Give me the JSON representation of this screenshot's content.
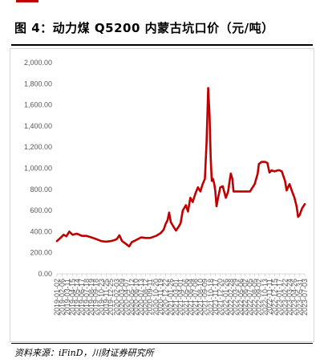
{
  "figure": {
    "title": "图 4：动力煤 Q5200 内蒙古坑口价（元/吨）",
    "source": "资料来源：iFinD，川财证券研究所"
  },
  "colors": {
    "line": "#c00000",
    "accent": "#c00000",
    "axis_text": "#595959",
    "gridline": "#d9d9d9"
  },
  "chart_data": {
    "type": "line",
    "title": "",
    "xlabel": "",
    "ylabel": "",
    "ylim": [
      0,
      2000
    ],
    "y_ticks": [
      "0.00",
      "200.00",
      "400.00",
      "600.00",
      "800.00",
      "1,000.00",
      "1,200.00",
      "1,400.00",
      "1,600.00",
      "1,800.00",
      "2,000.00"
    ],
    "x_ticks": [
      "2019-01-02",
      "2019-02-06",
      "2019-03-11",
      "2019-04-15",
      "2019-05-14",
      "2019-06-17",
      "2019-07-18",
      "2019-08-19",
      "2019-09-18",
      "2019-10-23",
      "2019-11-25",
      "2019-12-25",
      "2020-02-03",
      "2020-03-09",
      "2020-04-07",
      "2020-05-12",
      "2020-06-10",
      "2020-07-13",
      "2020-08-12",
      "2020-09-11",
      "2020-10-20",
      "2020-11-19",
      "2020-12-22",
      "2021-01-26",
      "2021-03-01",
      "2021-04-01",
      "2021-05-06",
      "2021-06-04",
      "2021-07-08",
      "2021-08-10",
      "2021-09-09",
      "2021-10-18",
      "2021-11-17",
      "2021-12-20",
      "2022-01-26",
      "2022-02-28",
      "2022-03-29",
      "2022-05-06",
      "2022-06-02",
      "2022-07-05",
      "2022-08-05",
      "2022-09-02",
      "2022-10-13",
      "2022-11-11",
      "2022-12-15",
      "2023-01-17",
      "2023-02-22",
      "2023-03-24",
      "2023-04-26",
      "2023-05-31",
      "2023-07-03"
    ],
    "grid": false,
    "legend": "none",
    "series": [
      {
        "x": [
          "2019-01-02",
          "2019-01-25",
          "2019-02-15",
          "2019-03-05",
          "2019-03-25",
          "2019-04-15",
          "2019-05-14",
          "2019-06-17",
          "2019-07-18",
          "2019-08-19",
          "2019-09-18",
          "2019-10-23",
          "2019-11-25",
          "2019-12-25",
          "2020-01-20",
          "2020-02-03",
          "2020-02-20",
          "2020-03-09",
          "2020-04-07",
          "2020-04-25",
          "2020-05-12",
          "2020-06-10",
          "2020-07-13",
          "2020-08-12",
          "2020-09-11",
          "2020-10-20",
          "2020-11-19",
          "2020-12-10",
          "2020-12-22",
          "2021-01-05",
          "2021-01-15",
          "2021-01-26",
          "2021-02-15",
          "2021-03-01",
          "2021-03-20",
          "2021-04-01",
          "2021-04-15",
          "2021-05-06",
          "2021-05-20",
          "2021-06-04",
          "2021-06-20",
          "2021-07-08",
          "2021-07-25",
          "2021-08-10",
          "2021-08-25",
          "2021-09-09",
          "2021-09-20",
          "2021-10-01",
          "2021-10-10",
          "2021-10-18",
          "2021-10-25",
          "2021-11-01",
          "2021-11-10",
          "2021-11-17",
          "2021-11-25",
          "2021-12-05",
          "2021-12-20",
          "2022-01-05",
          "2022-01-26",
          "2022-02-10",
          "2022-02-20",
          "2022-02-28",
          "2022-03-10",
          "2022-03-18",
          "2022-03-29",
          "2022-04-15",
          "2022-05-06",
          "2022-06-02",
          "2022-07-05",
          "2022-08-05",
          "2022-08-25",
          "2022-09-02",
          "2022-09-20",
          "2022-10-13",
          "2022-10-28",
          "2022-11-11",
          "2022-11-25",
          "2022-12-15",
          "2023-01-05",
          "2023-01-17",
          "2023-02-01",
          "2023-02-22",
          "2023-03-05",
          "2023-03-24",
          "2023-04-10",
          "2023-04-26",
          "2023-05-10",
          "2023-05-20",
          "2023-05-31",
          "2023-06-15",
          "2023-07-03"
        ],
        "values": [
          310,
          340,
          370,
          355,
          400,
          370,
          380,
          360,
          360,
          345,
          330,
          310,
          305,
          310,
          320,
          330,
          365,
          310,
          280,
          260,
          300,
          320,
          345,
          340,
          340,
          360,
          385,
          420,
          470,
          510,
          580,
          490,
          440,
          410,
          450,
          480,
          600,
          650,
          590,
          720,
          680,
          760,
          820,
          780,
          850,
          900,
          1250,
          1760,
          1500,
          1080,
          880,
          900,
          850,
          780,
          640,
          720,
          820,
          830,
          720,
          780,
          880,
          950,
          900,
          780,
          780,
          780,
          780,
          780,
          780,
          850,
          950,
          1040,
          1060,
          1060,
          1050,
          960,
          980,
          970,
          980,
          980,
          970,
          880,
          790,
          850,
          780,
          720,
          640,
          540,
          560,
          620,
          660
        ]
      }
    ]
  }
}
